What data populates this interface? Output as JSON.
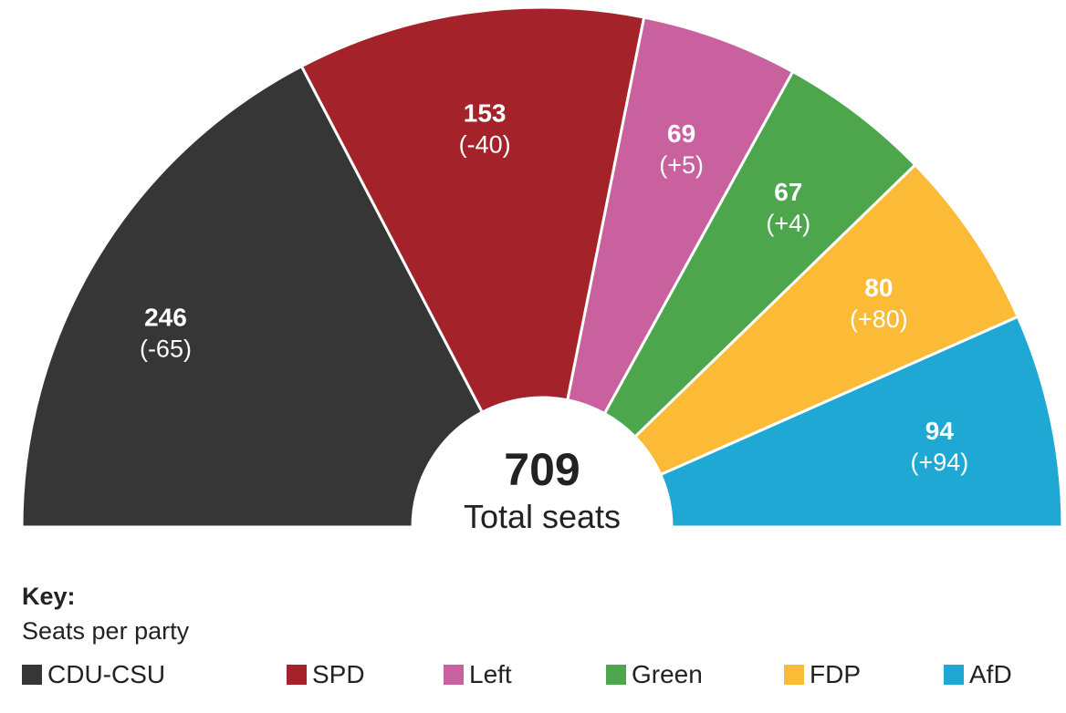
{
  "chart_data": {
    "type": "pie",
    "subtype": "semicircle-parliament",
    "total": {
      "value": "709",
      "label": "Total seats"
    },
    "series": [
      {
        "name": "CDU-CSU",
        "value": 246,
        "change": "(-65)",
        "color": "#363636"
      },
      {
        "name": "SPD",
        "value": 153,
        "change": "(-40)",
        "color": "#a4222a"
      },
      {
        "name": "Left",
        "value": 69,
        "change": "(+5)",
        "color": "#c9619f"
      },
      {
        "name": "Green",
        "value": 67,
        "change": "(+4)",
        "color": "#4ea64c"
      },
      {
        "name": "FDP",
        "value": 80,
        "change": "(+80)",
        "color": "#fbbb37"
      },
      {
        "name": "AfD",
        "value": 94,
        "change": "(+94)",
        "color": "#1fa8d4"
      }
    ]
  },
  "legend": {
    "title": "Key:",
    "subtitle": "Seats per party"
  }
}
